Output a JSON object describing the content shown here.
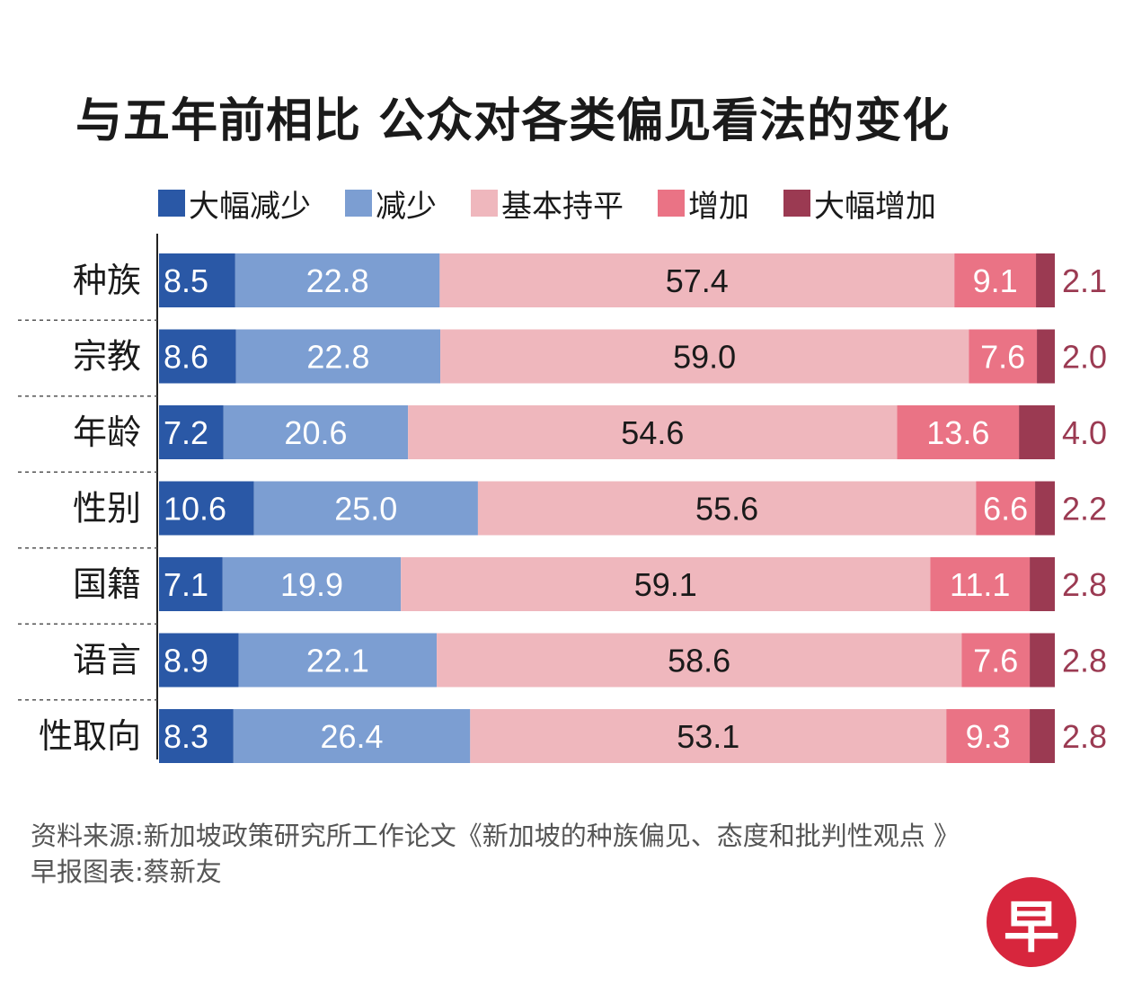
{
  "chart_data": {
    "type": "bar",
    "orientation": "horizontal-stacked-100",
    "title": "与五年前相比 公众对各类偏见看法的变化",
    "categories": [
      "种族",
      "宗教",
      "年龄",
      "性别",
      "国籍",
      "语言",
      "性取向"
    ],
    "series": [
      {
        "name": "大幅减少",
        "color": "#2a58a6",
        "values": [
          8.5,
          8.6,
          7.2,
          10.6,
          7.1,
          8.9,
          8.3
        ]
      },
      {
        "name": "减少",
        "color": "#7c9ed2",
        "values": [
          22.8,
          22.8,
          20.6,
          25.0,
          19.9,
          22.1,
          26.4
        ]
      },
      {
        "name": "基本持平",
        "color": "#efb7bd",
        "values": [
          57.4,
          59.0,
          54.6,
          55.6,
          59.1,
          58.6,
          53.1
        ]
      },
      {
        "name": "增加",
        "color": "#ea7385",
        "values": [
          9.1,
          7.6,
          13.6,
          6.6,
          11.1,
          7.6,
          9.3
        ]
      },
      {
        "name": "大幅增加",
        "color": "#9b3a52",
        "values": [
          2.1,
          2.0,
          4.0,
          2.2,
          2.8,
          2.8,
          2.8
        ]
      }
    ],
    "labels": {
      "大幅减少": [
        "8.5",
        "8.6",
        "7.2",
        "10.6",
        "7.1",
        "8.9",
        "8.3"
      ],
      "减少": [
        "22.8",
        "22.8",
        "20.6",
        "25.0",
        "19.9",
        "22.1",
        "26.4"
      ],
      "基本持平": [
        "57.4",
        "59.0",
        "54.6",
        "55.6",
        "59.1",
        "58.6",
        "53.1"
      ],
      "增加": [
        "9.1",
        "7.6",
        "13.6",
        "6.6",
        "11.1",
        "7.6",
        "9.3"
      ],
      "大幅增加": [
        "2.1",
        "2.0",
        "4.0",
        "2.2",
        "2.8",
        "2.8",
        "2.8"
      ]
    },
    "legend_position": "top"
  },
  "source": {
    "line1": "资料来源:新加坡政策研究所工作论文《新加坡的种族偏见、态度和批判性观点 》",
    "line2": "早报图表:蔡新友"
  },
  "logo": {
    "char": "早",
    "color": "#d7263d"
  }
}
